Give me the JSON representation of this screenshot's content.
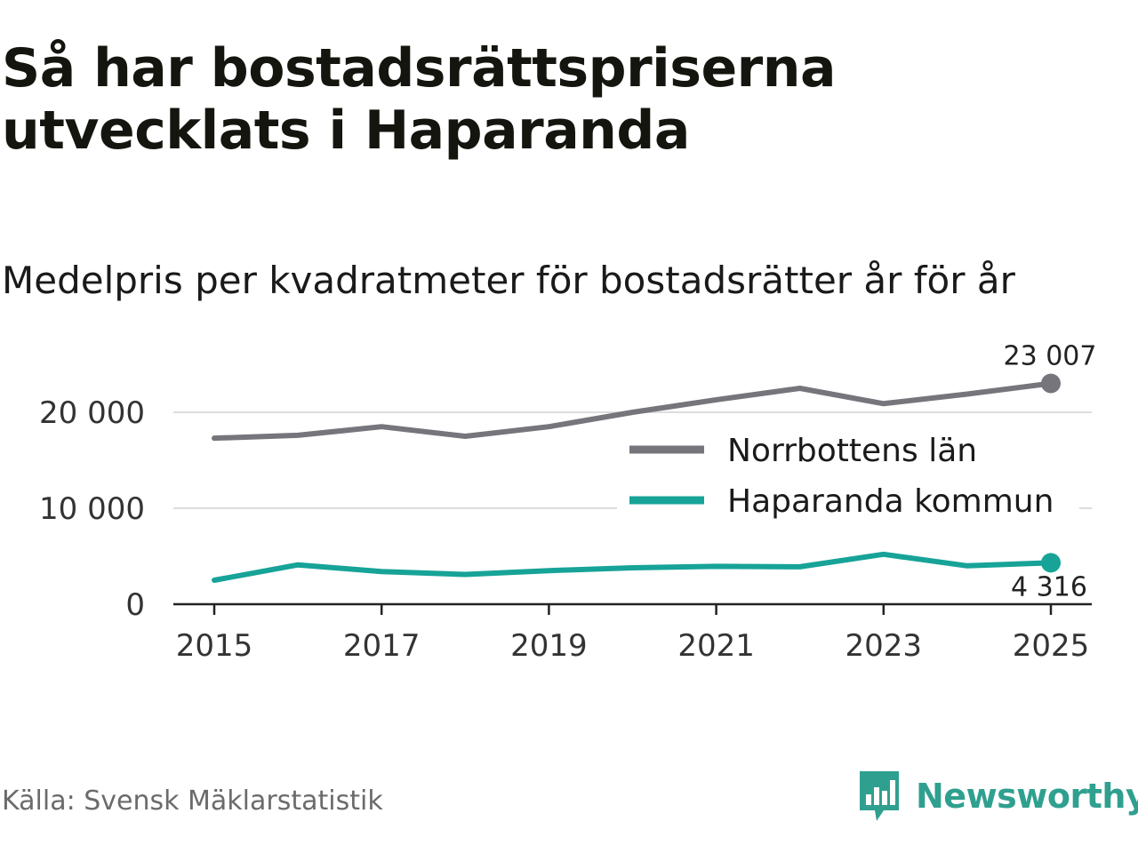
{
  "header": {
    "title": "Så har bostadsrättspriserna utvecklats i Haparanda",
    "subtitle": "Medelpris per kvadratmeter för bostadsrätter år för år"
  },
  "footer": {
    "source": "Källa: Svensk Mäklarstatistik",
    "brand": "Newsworthy"
  },
  "colors": {
    "norrbotten": "#76757c",
    "haparanda": "#17a398",
    "grid": "#dddddd",
    "axis": "#222222",
    "brand": "#2fa08f"
  },
  "chart_data": {
    "type": "line",
    "title": "Medelpris per kvadratmeter för bostadsrätter år för år",
    "xlabel": "",
    "ylabel": "",
    "x": [
      2015,
      2016,
      2017,
      2018,
      2019,
      2020,
      2021,
      2022,
      2023,
      2024,
      2025
    ],
    "xticks": [
      "2015",
      "2017",
      "2019",
      "2021",
      "2023",
      "2025"
    ],
    "yticks": [
      "0",
      "10 000",
      "20 000"
    ],
    "ytick_values": [
      0,
      10000,
      20000
    ],
    "ylim": [
      0,
      24000
    ],
    "grid": true,
    "legend_position": "right",
    "series": [
      {
        "name": "Norrbottens län",
        "values": [
          17300,
          17600,
          18500,
          17500,
          18500,
          20000,
          21300,
          22500,
          20900,
          21900,
          23007
        ],
        "end_label": "23 007"
      },
      {
        "name": "Haparanda kommun",
        "values": [
          2500,
          4100,
          3400,
          3100,
          3500,
          3800,
          3950,
          3900,
          5200,
          4000,
          4316
        ],
        "end_label": "4 316"
      }
    ]
  }
}
